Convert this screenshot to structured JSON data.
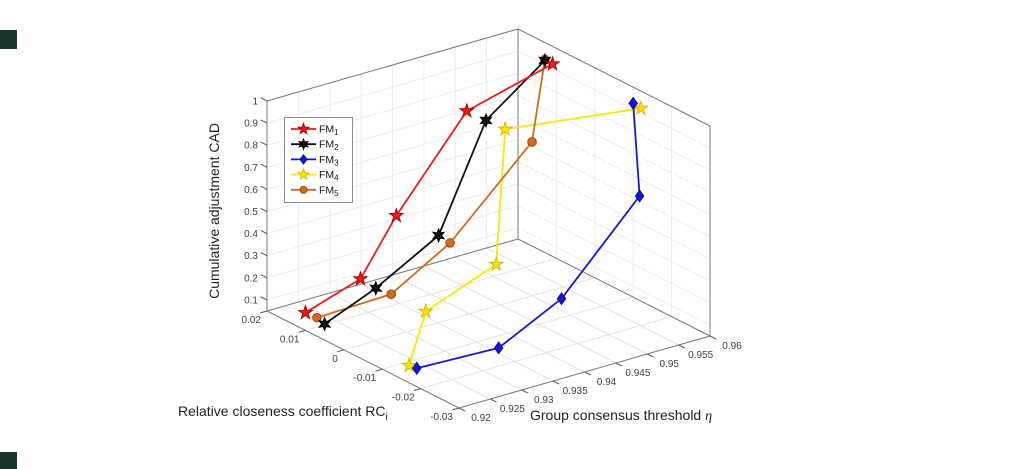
{
  "page": {
    "background": "#ffffff",
    "artifact_top_color": "#17372f",
    "artifact_bottom_color": "#17372f"
  },
  "chart_data": {
    "type": "line",
    "projection": "3d",
    "title": "",
    "grid": true,
    "legend_position": "upper-left-inside",
    "axes": {
      "x": {
        "label": "Group consensus threshold ",
        "label_symbol": "η",
        "range": [
          0.92,
          0.96
        ],
        "ticks": [
          0.92,
          0.925,
          0.93,
          0.935,
          0.94,
          0.945,
          0.95,
          0.955,
          0.96
        ]
      },
      "y": {
        "label": "Relative closeness coefficient RC",
        "label_sub": "i",
        "range": [
          -0.03,
          0.02
        ],
        "ticks": [
          0.02,
          0.01,
          0,
          -0.01,
          -0.02,
          -0.03
        ]
      },
      "z": {
        "label": "Cumulative adjustment CAD",
        "range": [
          0.05,
          1
        ],
        "ticks": [
          0.1,
          0.2,
          0.3,
          0.4,
          0.5,
          0.6,
          0.7,
          0.8,
          0.9,
          1
        ]
      }
    },
    "x_values": [
      0.92,
      0.93,
      0.94,
      0.95,
      0.96
    ],
    "series": [
      {
        "label": "FM",
        "sub": "1",
        "marker": "pentagram",
        "color": "#ec1c1c",
        "edge": "#a80000",
        "rc": [
          0.01,
          0.012,
          0.019,
          0.017,
          0.011
        ],
        "cad": [
          0.13,
          0.184,
          0.327,
          0.737,
          0.921
        ]
      },
      {
        "label": "FM",
        "sub": "2",
        "marker": "hexagram",
        "color": "#111111",
        "edge": "#000000",
        "rc": [
          0.005,
          0.008,
          0.008,
          0.012,
          0.013
        ],
        "cad": [
          0.123,
          0.177,
          0.334,
          0.738,
          0.919
        ]
      },
      {
        "label": "FM",
        "sub": "3",
        "marker": "diamond",
        "color": "#1616d9",
        "edge": "#0b0b99",
        "rc": [
          -0.019,
          -0.024,
          -0.024,
          -0.028,
          -0.01
        ],
        "cad": [
          0.133,
          0.188,
          0.329,
          0.747,
          0.927
        ]
      },
      {
        "label": "FM",
        "sub": "4",
        "marker": "pentagram",
        "color": "#ffe403",
        "edge": "#d9b800",
        "rc": [
          -0.017,
          -0.005,
          -0.007,
          0.007,
          -0.012
        ],
        "cad": [
          0.128,
          0.186,
          0.335,
          0.742,
          0.922
        ]
      },
      {
        "label": "FM",
        "sub": "5",
        "marker": "circle",
        "color": "#d2691e",
        "edge": "#9c4f00",
        "rc": [
          0.007,
          0.004,
          0.005,
          0.0,
          0.013
        ],
        "cad": [
          0.134,
          0.185,
          0.327,
          0.746,
          0.924
        ]
      }
    ]
  }
}
